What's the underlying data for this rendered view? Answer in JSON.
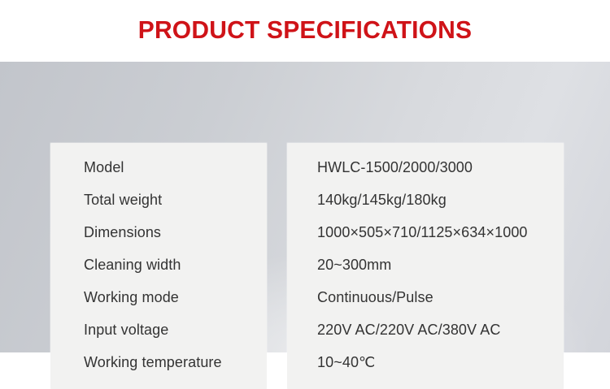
{
  "header": {
    "title": "PRODUCT SPECIFICATIONS"
  },
  "spec_table": {
    "rows": [
      {
        "label": "Model",
        "value": "HWLC-1500/2000/3000"
      },
      {
        "label": "Total weight",
        "value": "140kg/145kg/180kg"
      },
      {
        "label": "Dimensions",
        "value": "1000×505×710/1125×634×1000"
      },
      {
        "label": "Cleaning width",
        "value": "20~300mm"
      },
      {
        "label": "Working mode",
        "value": "Continuous/Pulse"
      },
      {
        "label": "Input voltage",
        "value": "220V AC/220V AC/380V AC"
      },
      {
        "label": "Working temperature",
        "value": "10~40℃"
      }
    ]
  },
  "colors": {
    "accent_red": "#cf1318",
    "stage_gray": "#ccced4",
    "card_bg": "#f2f2f1",
    "text": "#333333"
  }
}
